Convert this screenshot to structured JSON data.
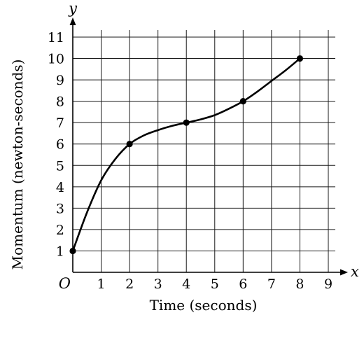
{
  "chart_data": {
    "type": "line",
    "xlabel": "Time (seconds)",
    "ylabel": "Momentum (newton-seconds)",
    "x_axis_symbol": "x",
    "y_axis_symbol": "y",
    "origin_label": "O",
    "xlim": [
      0,
      9
    ],
    "ylim": [
      0,
      11
    ],
    "x_ticks": [
      1,
      2,
      3,
      4,
      5,
      6,
      7,
      8,
      9
    ],
    "y_ticks": [
      1,
      2,
      3,
      4,
      5,
      6,
      7,
      8,
      9,
      10,
      11
    ],
    "grid": true,
    "series": [
      {
        "points": [
          {
            "x": 0,
            "y": 1
          },
          {
            "x": 2,
            "y": 6
          },
          {
            "x": 4,
            "y": 7
          },
          {
            "x": 6,
            "y": 8
          },
          {
            "x": 8,
            "y": 10
          }
        ],
        "curve_samples": [
          {
            "x": 0,
            "y": 1
          },
          {
            "x": 0.5,
            "y": 2.8
          },
          {
            "x": 1,
            "y": 4.3
          },
          {
            "x": 1.5,
            "y": 5.3
          },
          {
            "x": 2,
            "y": 6
          },
          {
            "x": 2.5,
            "y": 6.4
          },
          {
            "x": 3,
            "y": 6.65
          },
          {
            "x": 3.5,
            "y": 6.85
          },
          {
            "x": 4,
            "y": 7
          },
          {
            "x": 4.5,
            "y": 7.15
          },
          {
            "x": 5,
            "y": 7.35
          },
          {
            "x": 5.5,
            "y": 7.65
          },
          {
            "x": 6,
            "y": 8
          },
          {
            "x": 6.5,
            "y": 8.45
          },
          {
            "x": 7,
            "y": 8.95
          },
          {
            "x": 7.5,
            "y": 9.45
          },
          {
            "x": 8,
            "y": 10
          }
        ],
        "color": "#000000"
      }
    ]
  }
}
